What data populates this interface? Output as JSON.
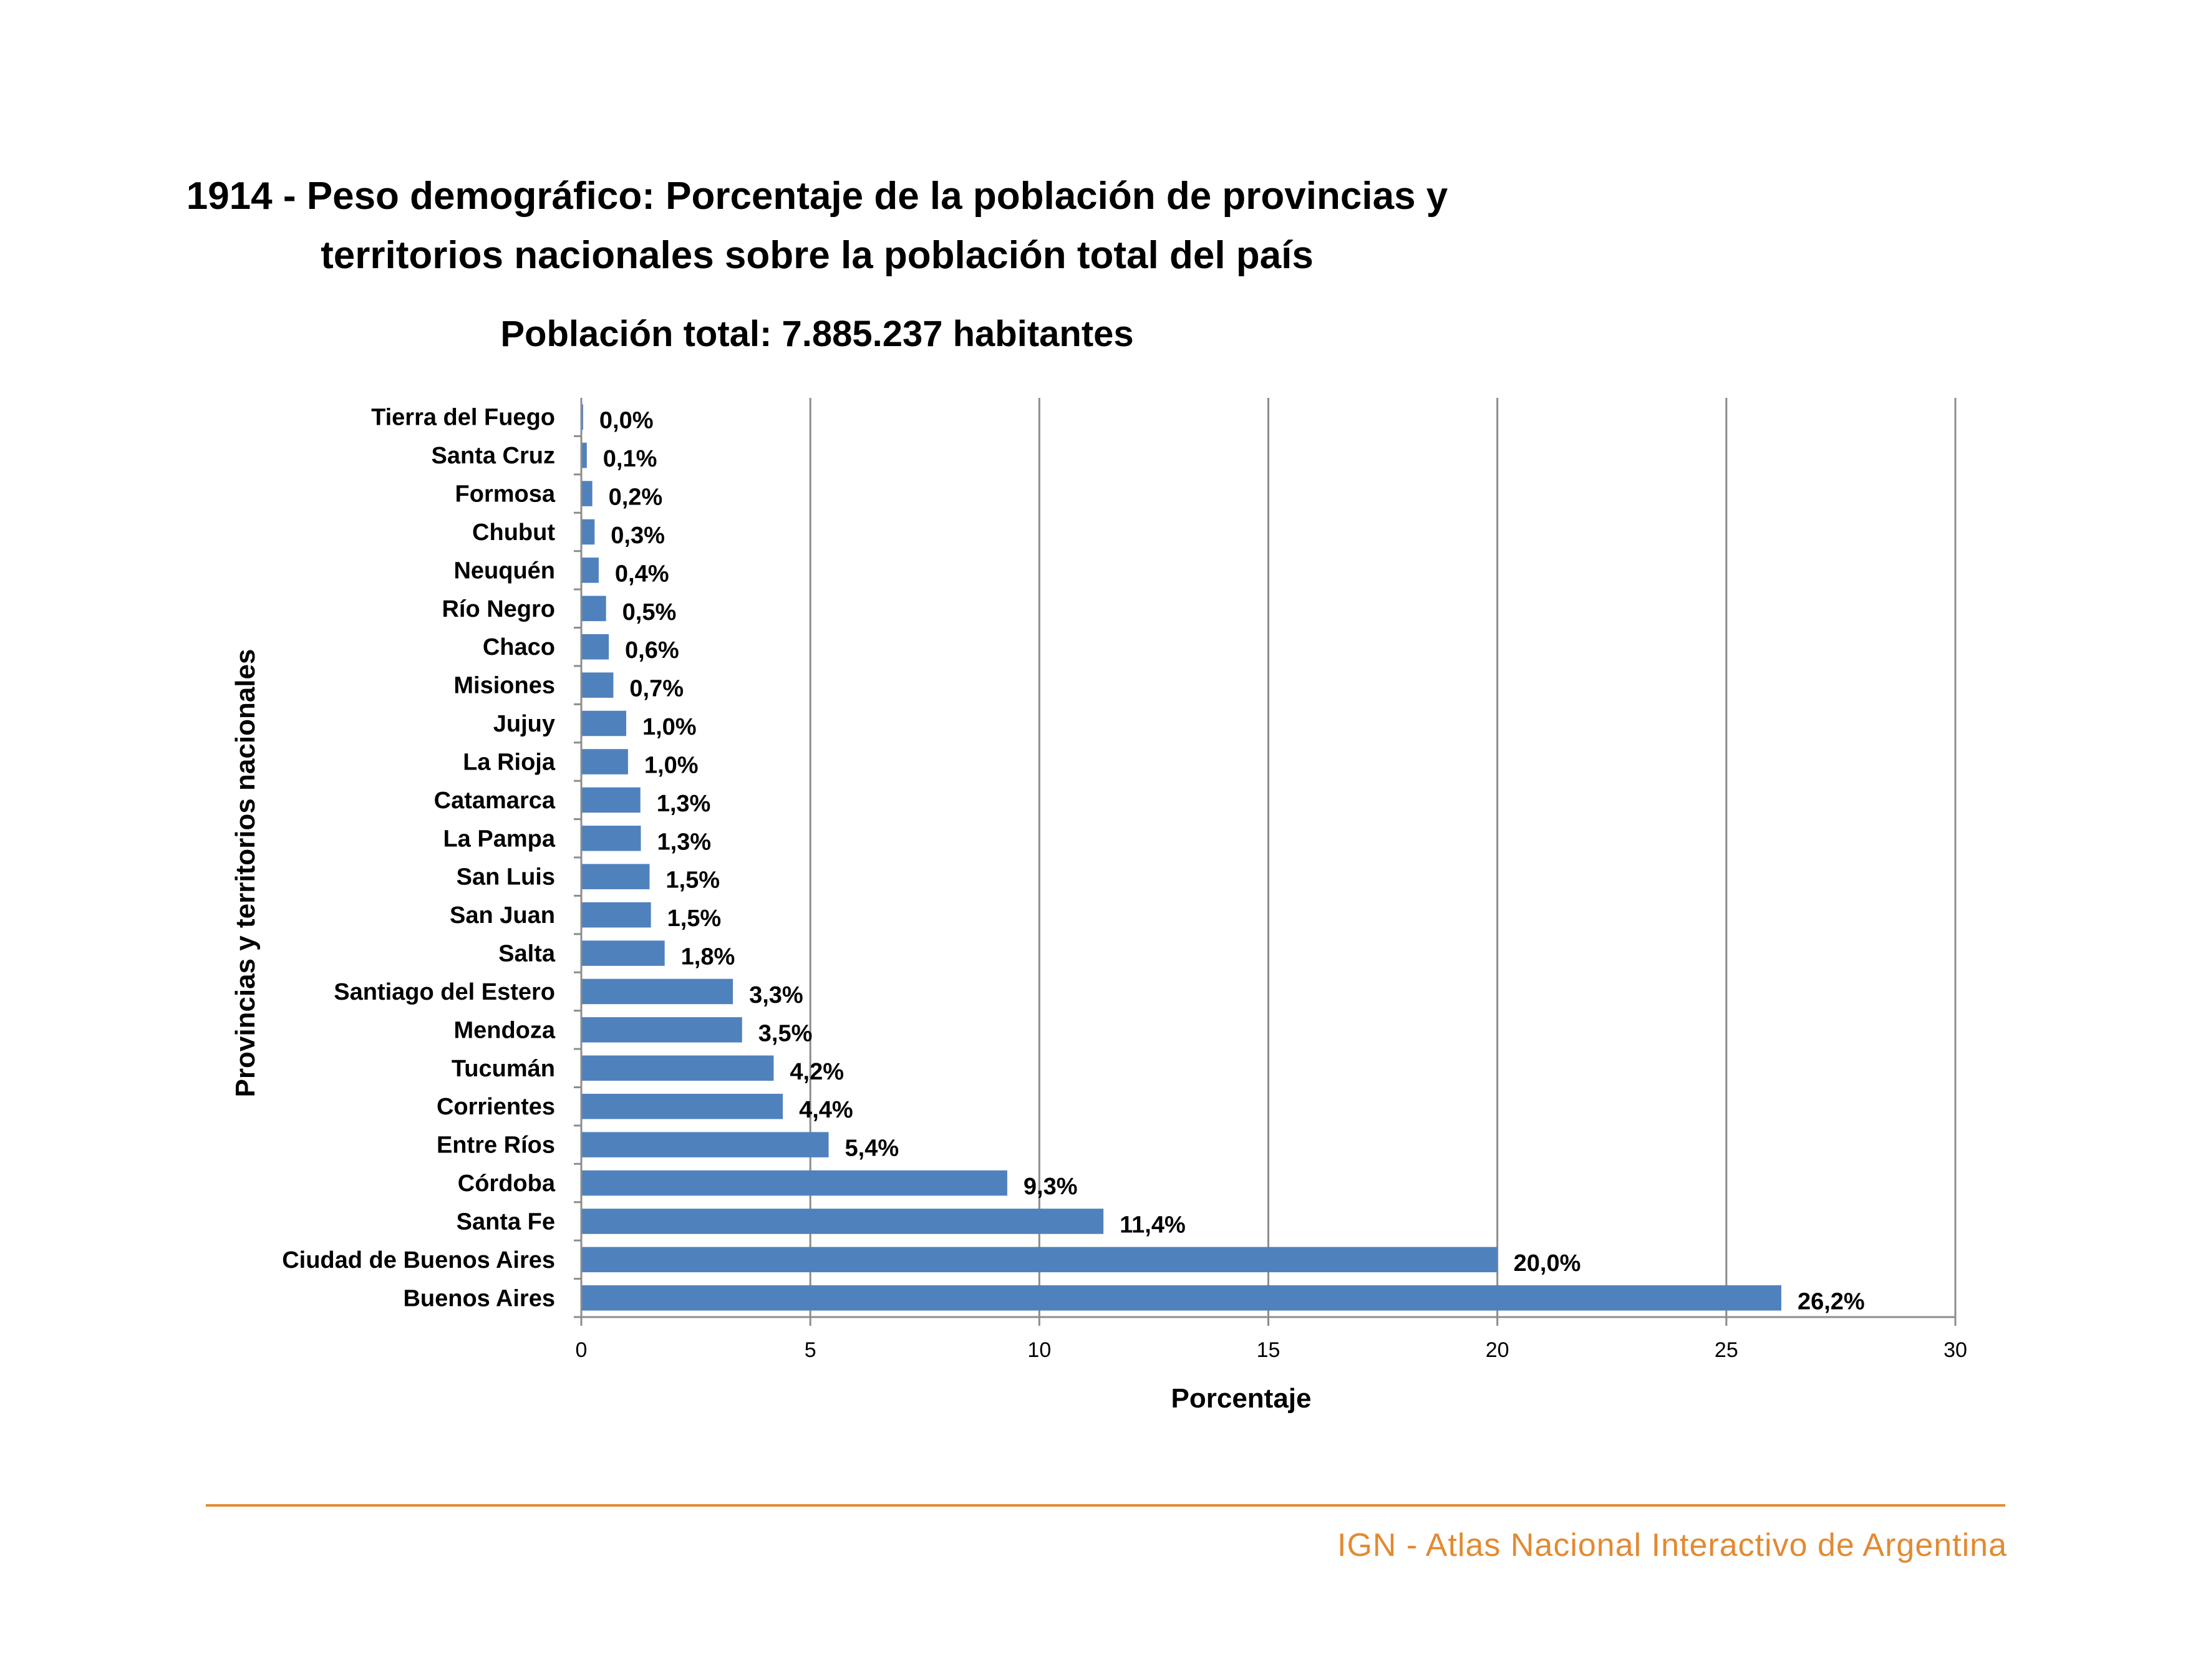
{
  "chart_data": {
    "type": "bar",
    "orientation": "horizontal",
    "title": [
      "1914 - Peso demográfico: Porcentaje de la población de provincias y",
      "territorios nacionales sobre la población total del país"
    ],
    "subtitle": "Población total: 7.885.237 habitantes",
    "xlabel": "Porcentaje",
    "ylabel": "Provincias y territorios nacionales",
    "xlim": [
      0,
      30
    ],
    "xticks": [
      "0",
      "5",
      "10",
      "15",
      "20",
      "25",
      "30"
    ],
    "grid": "vertical",
    "categories": [
      "Tierra del Fuego",
      "Santa Cruz",
      "Formosa",
      "Chubut",
      "Neuquén",
      "Río Negro",
      "Chaco",
      "Misiones",
      "Jujuy",
      "La Rioja",
      "Catamarca",
      "La Pampa",
      "San Luis",
      "San Juan",
      "Salta",
      "Santiago del Estero",
      "Mendoza",
      "Tucumán",
      "Corrientes",
      "Entre Ríos",
      "Córdoba",
      "Santa Fe",
      "Ciudad de Buenos Aires",
      "Buenos Aires"
    ],
    "values": [
      0.04,
      0.12,
      0.24,
      0.29,
      0.38,
      0.54,
      0.6,
      0.7,
      0.98,
      1.02,
      1.29,
      1.3,
      1.49,
      1.52,
      1.82,
      3.31,
      3.51,
      4.2,
      4.4,
      5.4,
      9.3,
      11.4,
      20.0,
      26.2
    ],
    "data_labels": [
      "0,0%",
      "0,1%",
      "0,2%",
      "0,3%",
      "0,4%",
      "0,5%",
      "0,6%",
      "0,7%",
      "1,0%",
      "1,0%",
      "1,3%",
      "1,3%",
      "1,5%",
      "1,5%",
      "1,8%",
      "3,3%",
      "3,5%",
      "4,2%",
      "4,4%",
      "5,4%",
      "9,3%",
      "11,4%",
      "20,0%",
      "26,2%"
    ],
    "bar_color": "#4f81bd",
    "gridline_color": "#8c8c8c",
    "axis_color": "#8c8c8c"
  },
  "footer": {
    "text": "IGN - Atlas Nacional Interactivo de Argentina",
    "color": "#e28a32"
  }
}
